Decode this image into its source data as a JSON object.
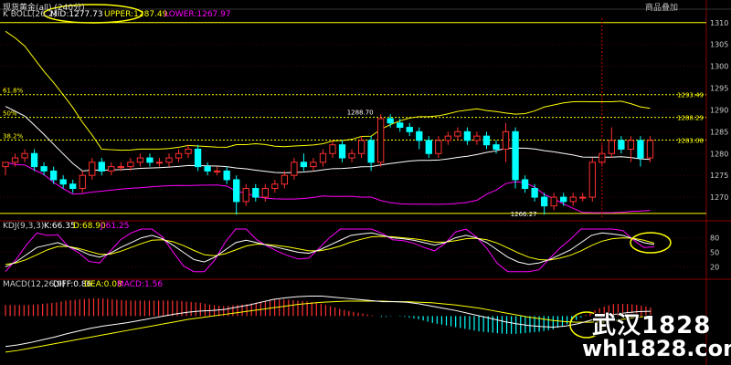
{
  "window": {
    "title": "现货黄金(all) (240分)",
    "menu": [
      "商品叠加"
    ]
  },
  "indicators": {
    "boll": {
      "name": "K  BOLL(26,2)",
      "mid": "MID:1277.73",
      "upper": "UPPER:1287.49",
      "lower": "LOWER:1267.97"
    },
    "kdj": {
      "name": "KDJ(9,3,3)",
      "k": "K:66.35",
      "d": "D:68.90",
      "j": "J:61.25"
    },
    "macd": {
      "name": "MACD(12,26,9)",
      "diff": "DIFF:0.86",
      "dea": "DEA:0.08",
      "macd": "MACD:1.56"
    }
  },
  "fib_labels": [
    "61.8%",
    "50%",
    "38.2%"
  ],
  "price_tags": [
    "1293.49",
    "1288.29",
    "1283.08"
  ],
  "annotations": {
    "high": "1288.70",
    "low": "1266.27"
  },
  "axis": {
    "price_ticks": [
      "1310",
      "1305",
      "1300",
      "1295",
      "1290",
      "1285",
      "1280",
      "1275",
      "1270"
    ],
    "kdj_ticks": [
      "80",
      "50",
      "20"
    ]
  },
  "watermark": {
    "line1": "武汉1828",
    "line2": "whl1828.com"
  },
  "colors": {
    "up": "#ff3030",
    "down": "#00ffff",
    "boll_mid": "#ffffff",
    "boll_upper": "#ffff00",
    "boll_lower": "#ff00ff",
    "kdj_k": "#ffffff",
    "kdj_d": "#ffff00",
    "kdj_j": "#ff00ff",
    "grid": "#8a0000",
    "fib": "#ffff00",
    "circle": "#ffff00"
  },
  "chart_data": {
    "type": "candlestick",
    "price_range": [
      1265,
      1311
    ],
    "candles": [
      {
        "o": 1277,
        "h": 1278,
        "l": 1275,
        "c": 1278
      },
      {
        "o": 1278,
        "h": 1280,
        "l": 1277,
        "c": 1279
      },
      {
        "o": 1279,
        "h": 1281,
        "l": 1278,
        "c": 1280
      },
      {
        "o": 1280,
        "h": 1281,
        "l": 1276,
        "c": 1277
      },
      {
        "o": 1277,
        "h": 1278,
        "l": 1275,
        "c": 1276
      },
      {
        "o": 1276,
        "h": 1277,
        "l": 1273,
        "c": 1274
      },
      {
        "o": 1274,
        "h": 1275,
        "l": 1272,
        "c": 1273
      },
      {
        "o": 1273,
        "h": 1274,
        "l": 1271,
        "c": 1272
      },
      {
        "o": 1272,
        "h": 1276,
        "l": 1271,
        "c": 1275
      },
      {
        "o": 1275,
        "h": 1279,
        "l": 1274,
        "c": 1278
      },
      {
        "o": 1278,
        "h": 1279,
        "l": 1275,
        "c": 1276
      },
      {
        "o": 1276,
        "h": 1278,
        "l": 1275,
        "c": 1277
      },
      {
        "o": 1277,
        "h": 1278,
        "l": 1276,
        "c": 1277
      },
      {
        "o": 1277,
        "h": 1279,
        "l": 1276,
        "c": 1278
      },
      {
        "o": 1278,
        "h": 1280,
        "l": 1277,
        "c": 1279
      },
      {
        "o": 1279,
        "h": 1280,
        "l": 1277,
        "c": 1278
      },
      {
        "o": 1278,
        "h": 1279,
        "l": 1277,
        "c": 1278
      },
      {
        "o": 1278,
        "h": 1280,
        "l": 1277,
        "c": 1279
      },
      {
        "o": 1279,
        "h": 1281,
        "l": 1278,
        "c": 1280
      },
      {
        "o": 1280,
        "h": 1282,
        "l": 1279,
        "c": 1281
      },
      {
        "o": 1281,
        "h": 1282,
        "l": 1276,
        "c": 1277
      },
      {
        "o": 1277,
        "h": 1278,
        "l": 1275,
        "c": 1276
      },
      {
        "o": 1276,
        "h": 1277,
        "l": 1275,
        "c": 1276
      },
      {
        "o": 1276,
        "h": 1277,
        "l": 1273,
        "c": 1274
      },
      {
        "o": 1274,
        "h": 1275,
        "l": 1266,
        "c": 1269
      },
      {
        "o": 1269,
        "h": 1273,
        "l": 1268,
        "c": 1272
      },
      {
        "o": 1272,
        "h": 1273,
        "l": 1269,
        "c": 1270
      },
      {
        "o": 1270,
        "h": 1273,
        "l": 1269,
        "c": 1272
      },
      {
        "o": 1272,
        "h": 1274,
        "l": 1271,
        "c": 1273
      },
      {
        "o": 1273,
        "h": 1276,
        "l": 1272,
        "c": 1275
      },
      {
        "o": 1275,
        "h": 1279,
        "l": 1274,
        "c": 1278
      },
      {
        "o": 1278,
        "h": 1280,
        "l": 1276,
        "c": 1277
      },
      {
        "o": 1277,
        "h": 1279,
        "l": 1276,
        "c": 1278
      },
      {
        "o": 1278,
        "h": 1281,
        "l": 1277,
        "c": 1280
      },
      {
        "o": 1280,
        "h": 1283,
        "l": 1279,
        "c": 1282
      },
      {
        "o": 1282,
        "h": 1283,
        "l": 1278,
        "c": 1279
      },
      {
        "o": 1279,
        "h": 1281,
        "l": 1278,
        "c": 1280
      },
      {
        "o": 1280,
        "h": 1284,
        "l": 1279,
        "c": 1283
      },
      {
        "o": 1283,
        "h": 1284,
        "l": 1276,
        "c": 1278
      },
      {
        "o": 1278,
        "h": 1289,
        "l": 1277,
        "c": 1288
      },
      {
        "o": 1288,
        "h": 1289,
        "l": 1286,
        "c": 1287
      },
      {
        "o": 1287,
        "h": 1288,
        "l": 1285,
        "c": 1286
      },
      {
        "o": 1286,
        "h": 1287,
        "l": 1284,
        "c": 1285
      },
      {
        "o": 1285,
        "h": 1286,
        "l": 1281,
        "c": 1283
      },
      {
        "o": 1283,
        "h": 1284,
        "l": 1279,
        "c": 1280
      },
      {
        "o": 1280,
        "h": 1284,
        "l": 1279,
        "c": 1283
      },
      {
        "o": 1283,
        "h": 1285,
        "l": 1282,
        "c": 1284
      },
      {
        "o": 1284,
        "h": 1286,
        "l": 1283,
        "c": 1285
      },
      {
        "o": 1285,
        "h": 1286,
        "l": 1282,
        "c": 1283
      },
      {
        "o": 1283,
        "h": 1285,
        "l": 1282,
        "c": 1284
      },
      {
        "o": 1284,
        "h": 1285,
        "l": 1281,
        "c": 1282
      },
      {
        "o": 1282,
        "h": 1283,
        "l": 1280,
        "c": 1281
      },
      {
        "o": 1281,
        "h": 1287,
        "l": 1278,
        "c": 1285
      },
      {
        "o": 1285,
        "h": 1286,
        "l": 1272,
        "c": 1274
      },
      {
        "o": 1274,
        "h": 1275,
        "l": 1271,
        "c": 1272
      },
      {
        "o": 1272,
        "h": 1273,
        "l": 1269,
        "c": 1270
      },
      {
        "o": 1270,
        "h": 1271,
        "l": 1266,
        "c": 1268
      },
      {
        "o": 1268,
        "h": 1271,
        "l": 1267,
        "c": 1270
      },
      {
        "o": 1270,
        "h": 1271,
        "l": 1268,
        "c": 1269
      },
      {
        "o": 1269,
        "h": 1271,
        "l": 1268,
        "c": 1270
      },
      {
        "o": 1270,
        "h": 1271,
        "l": 1269,
        "c": 1270
      },
      {
        "o": 1270,
        "h": 1279,
        "l": 1269,
        "c": 1278
      },
      {
        "o": 1278,
        "h": 1282,
        "l": 1277,
        "c": 1280
      },
      {
        "o": 1280,
        "h": 1286,
        "l": 1279,
        "c": 1283
      },
      {
        "o": 1283,
        "h": 1284,
        "l": 1280,
        "c": 1281
      },
      {
        "o": 1281,
        "h": 1284,
        "l": 1278,
        "c": 1283
      },
      {
        "o": 1283,
        "h": 1284,
        "l": 1277,
        "c": 1279
      },
      {
        "o": 1279,
        "h": 1284,
        "l": 1278,
        "c": 1283
      }
    ],
    "kdj": {
      "k": [
        20,
        30,
        45,
        60,
        65,
        70,
        62,
        55,
        45,
        40,
        48,
        60,
        70,
        80,
        85,
        78,
        65,
        50,
        35,
        30,
        40,
        55,
        70,
        75,
        70,
        65,
        60,
        55,
        50,
        48,
        55,
        65,
        75,
        85,
        88,
        90,
        85,
        80,
        78,
        75,
        70,
        65,
        70,
        80,
        85,
        80,
        70,
        55,
        40,
        30,
        25,
        28,
        35,
        45,
        55,
        70,
        85,
        90,
        88,
        85,
        78,
        70,
        66
      ],
      "d": [
        25,
        28,
        35,
        45,
        55,
        62,
        62,
        58,
        52,
        46,
        46,
        52,
        60,
        68,
        75,
        76,
        72,
        64,
        54,
        45,
        43,
        47,
        55,
        63,
        67,
        66,
        64,
        61,
        57,
        53,
        53,
        57,
        63,
        71,
        77,
        82,
        83,
        82,
        80,
        78,
        75,
        71,
        71,
        74,
        78,
        79,
        76,
        69,
        59,
        49,
        40,
        35,
        34,
        38,
        44,
        53,
        64,
        73,
        78,
        80,
        79,
        75,
        68.9
      ],
      "j": [
        10,
        35,
        65,
        90,
        85,
        86,
        62,
        49,
        31,
        28,
        52,
        76,
        90,
        98,
        98,
        82,
        51,
        22,
        10,
        10,
        34,
        71,
        98,
        98,
        76,
        63,
        52,
        43,
        36,
        38,
        59,
        81,
        98,
        98,
        98,
        98,
        89,
        76,
        74,
        69,
        60,
        53,
        68,
        92,
        98,
        82,
        58,
        27,
        10,
        10,
        10,
        14,
        37,
        59,
        77,
        98,
        98,
        98,
        98,
        95,
        76,
        60,
        61.25
      ]
    },
    "macd": {
      "diff": [
        -5.5,
        -5.2,
        -4.8,
        -4.3,
        -3.8,
        -3.2,
        -2.7,
        -2.2,
        -1.8,
        -1.5,
        -1.2,
        -0.8,
        -0.4,
        0,
        0.4,
        0.7,
        0.9,
        1.0,
        1.2,
        1.6,
        2.0,
        2.5,
        3.0,
        3.3,
        3.5,
        3.6,
        3.6,
        3.4,
        3.2,
        3.0,
        2.8,
        2.6,
        2.6,
        2.5,
        2.2,
        1.8,
        1.4,
        1.0,
        0.5,
        0,
        -0.5,
        -1.0,
        -1.4,
        -1.7,
        -1.9,
        -2.0,
        -1.8,
        -1.4,
        -0.8,
        -0.2,
        0.3,
        0.6,
        0.8,
        0.86
      ],
      "dea": [
        -6.5,
        -6.2,
        -5.8,
        -5.4,
        -5.0,
        -4.6,
        -4.2,
        -3.8,
        -3.4,
        -3.0,
        -2.6,
        -2.2,
        -1.8,
        -1.4,
        -1.0,
        -0.6,
        -0.3,
        0,
        0.3,
        0.6,
        0.9,
        1.2,
        1.5,
        1.8,
        2.1,
        2.3,
        2.5,
        2.6,
        2.7,
        2.7,
        2.7,
        2.7,
        2.6,
        2.6,
        2.5,
        2.4,
        2.2,
        2.0,
        1.7,
        1.4,
        1.0,
        0.6,
        0.2,
        -0.2,
        -0.5,
        -0.8,
        -1.0,
        -1.1,
        -1.1,
        -1.0,
        -0.8,
        -0.5,
        -0.2,
        0.08
      ]
    }
  }
}
